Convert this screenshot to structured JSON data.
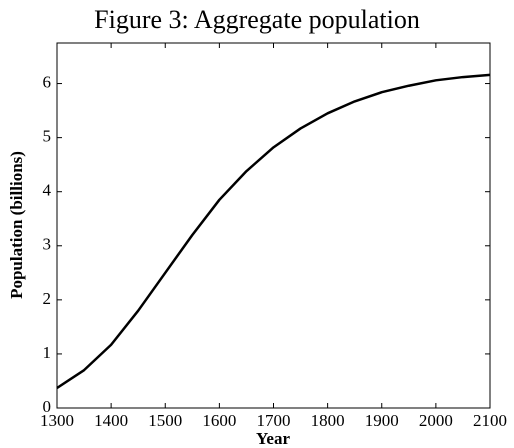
{
  "chart_data": {
    "type": "line",
    "title": "Figure 3: Aggregate population",
    "x_label": "Year",
    "y_label": "Population (billions)",
    "x": [
      1300,
      1350,
      1400,
      1450,
      1500,
      1550,
      1600,
      1650,
      1700,
      1750,
      1800,
      1850,
      1900,
      1950,
      2000,
      2050,
      2100
    ],
    "series": [
      {
        "name": "Population",
        "color": "#000000",
        "values": [
          0.37,
          0.7,
          1.17,
          1.8,
          2.5,
          3.2,
          3.85,
          4.38,
          4.82,
          5.17,
          5.45,
          5.67,
          5.84,
          5.96,
          6.06,
          6.12,
          6.16
        ]
      }
    ],
    "xlim": [
      1300,
      2100
    ],
    "xticks": [
      1300,
      1400,
      1500,
      1600,
      1700,
      1800,
      1900,
      2000,
      2100
    ],
    "ylim": [
      0,
      6.75
    ],
    "yticks": [
      0,
      1,
      2,
      3,
      4,
      5,
      6
    ],
    "grid": false
  }
}
